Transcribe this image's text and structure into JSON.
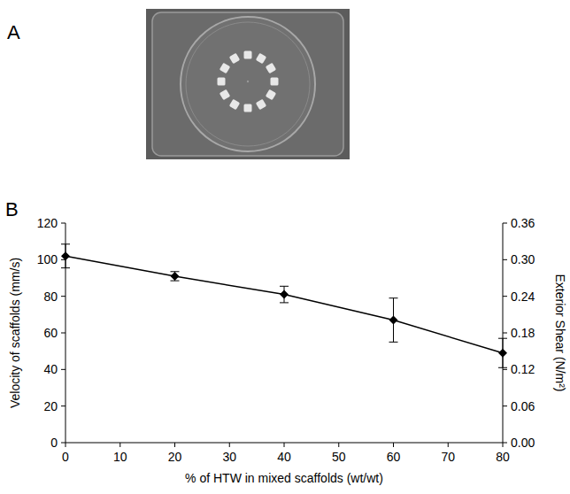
{
  "panel_labels": [
    "A",
    "B"
  ],
  "chart_data": {
    "type": "line",
    "x": [
      0,
      20,
      40,
      60,
      80
    ],
    "values": [
      102,
      91,
      81,
      67,
      49
    ],
    "errors": [
      6.5,
      2.5,
      4.5,
      12,
      8
    ],
    "color": "#000000",
    "marker": "diamond",
    "line_style": "solid",
    "grid": false,
    "x_label": "% of HTW in mixed scaffolds (wt/wt)",
    "y_label": "Velocity of scaffolds (mm/s)",
    "y2_label": "Exterior Shear (N/m²)",
    "xlim": [
      0,
      80
    ],
    "xticks": [
      0,
      10,
      20,
      30,
      40,
      50,
      60,
      70,
      80
    ],
    "ylim": [
      0,
      120
    ],
    "yticks": [
      0,
      20,
      40,
      60,
      80,
      100,
      120
    ],
    "y2lim": [
      0,
      0.36
    ],
    "y2ticks": [
      {
        "value": 0,
        "label": "0.00"
      },
      0.06,
      0.12,
      0.18,
      0.24,
      {
        "value": 0.3,
        "label": "0.30"
      },
      0.36
    ]
  }
}
